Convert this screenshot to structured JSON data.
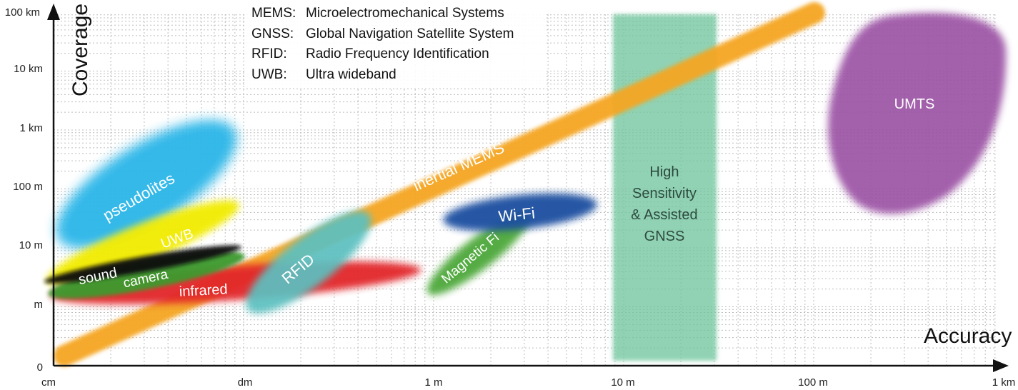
{
  "axes": {
    "x_title": "Accuracy",
    "y_title": "Coverage",
    "x_ticks": [
      "cm",
      "dm",
      "1 m",
      "10 m",
      "100 m",
      "1 km"
    ],
    "y_ticks": [
      "0",
      "m",
      "10 m",
      "100 m",
      "1 km",
      "10 km",
      "100 km"
    ]
  },
  "legend": [
    {
      "abbr": "MEMS:",
      "desc": "Microelectromechanical Systems"
    },
    {
      "abbr": "GNSS:",
      "desc": "Global Navigation Satellite System"
    },
    {
      "abbr": "RFID:",
      "desc": "Radio Frequency Identification"
    },
    {
      "abbr": "UWB:",
      "desc": "Ultra wideband"
    }
  ],
  "technologies": {
    "pseudolites": {
      "label": "pseudolites",
      "color": "#29b6e8"
    },
    "uwb": {
      "label": "UWB",
      "color": "#f2ec00"
    },
    "sound": {
      "label": "sound",
      "color": "#111111"
    },
    "camera": {
      "label": "camera",
      "color": "#3e9a2f"
    },
    "infrared": {
      "label": "infrared",
      "color": "#e2262b"
    },
    "rfid": {
      "label": "RFID",
      "color": "#5cc0c0"
    },
    "inertial_mems": {
      "label": "inertial MEMS",
      "color": "#f5a623"
    },
    "wifi": {
      "label": "Wi-Fi",
      "color": "#1e4fa0"
    },
    "magnetic": {
      "label": "Magnetic Fi",
      "color": "#4ea83a"
    },
    "gnss": {
      "line1": "High",
      "line2": "Sensitivity",
      "line3": "& Assisted",
      "line4": "GNSS",
      "color": "#6cc49a"
    },
    "umts": {
      "label": "UMTS",
      "color": "#9a4fa3"
    }
  }
}
